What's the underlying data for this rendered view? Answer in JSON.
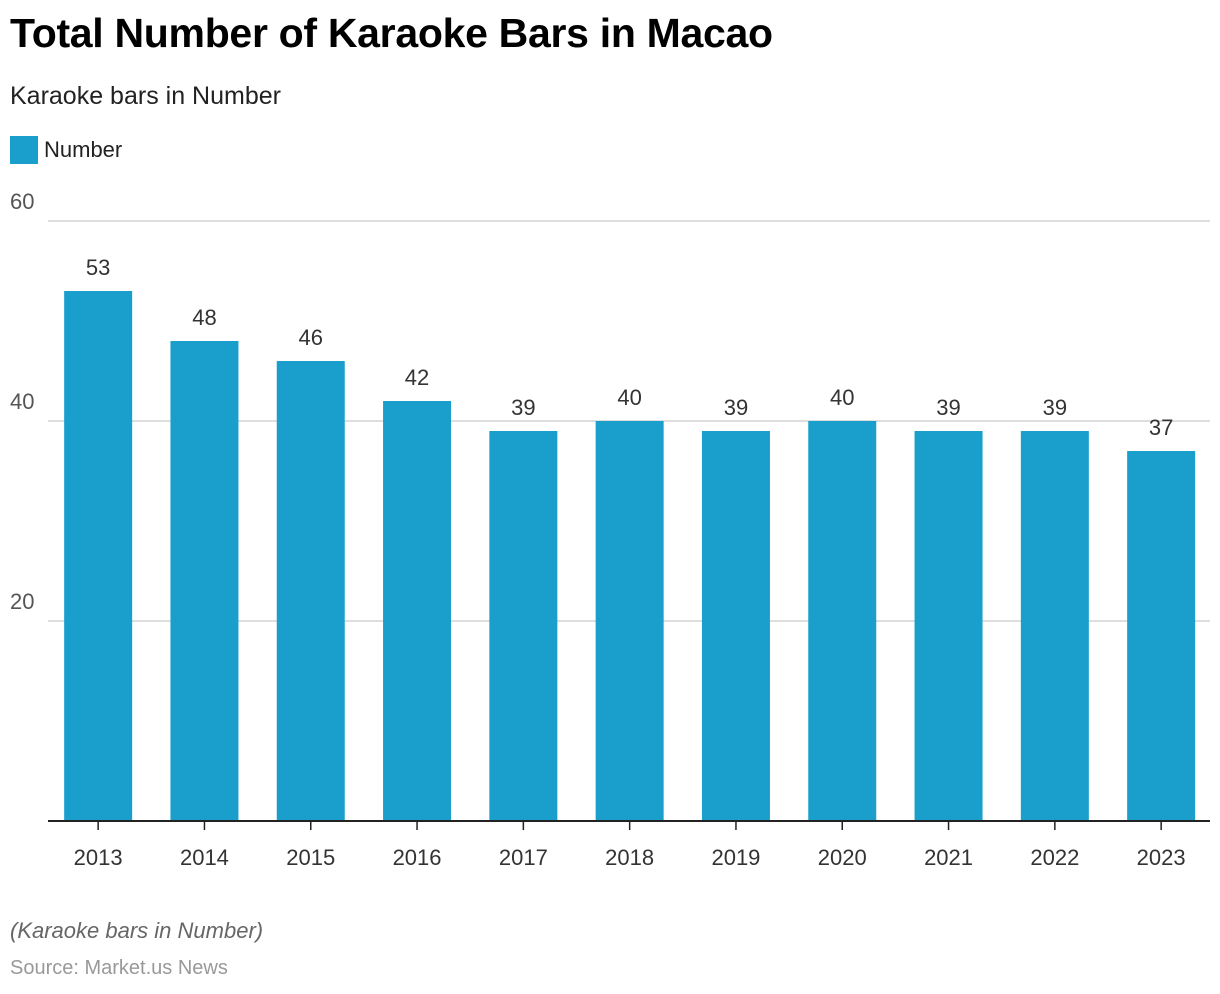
{
  "chart_data": {
    "type": "bar",
    "title": "Total Number of Karaoke Bars in Macao",
    "subtitle": "Karaoke bars in Number",
    "xlabel": "",
    "ylabel": "",
    "categories": [
      "2013",
      "2014",
      "2015",
      "2016",
      "2017",
      "2018",
      "2019",
      "2020",
      "2021",
      "2022",
      "2023"
    ],
    "series": [
      {
        "name": "Number",
        "values": [
          53,
          48,
          46,
          42,
          39,
          40,
          39,
          40,
          39,
          39,
          37
        ],
        "color": "#1a9fcd"
      }
    ],
    "ylim": [
      0,
      60
    ],
    "yticks": [
      20,
      40,
      60
    ],
    "grid": true,
    "legend": "top-left"
  },
  "footnote": "(Karaoke bars in Number)",
  "source": "Source: Market.us News"
}
